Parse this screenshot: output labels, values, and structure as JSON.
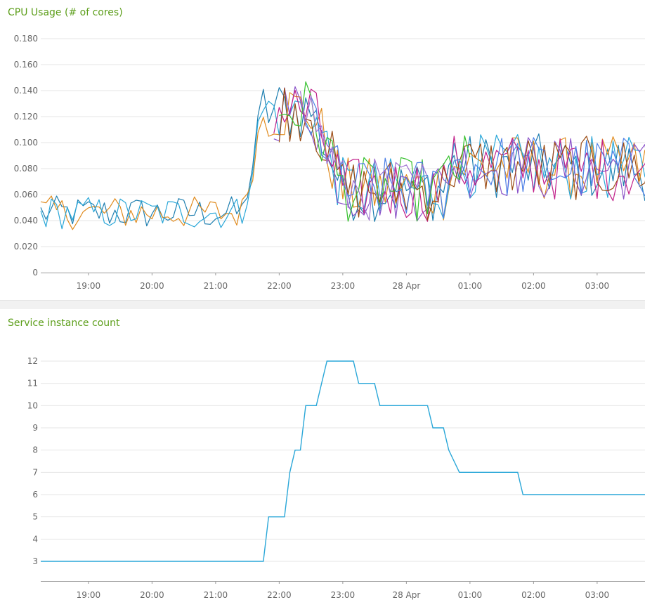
{
  "chart_data": [
    {
      "type": "line",
      "title": "CPU Usage (# of cores)",
      "ylim": [
        0,
        0.18
      ],
      "yticks": [
        "0",
        "0.020",
        "0.040",
        "0.060",
        "0.080",
        "0.100",
        "0.120",
        "0.140",
        "0.160",
        "0.180"
      ],
      "ytick_values": [
        0,
        0.02,
        0.04,
        0.06,
        0.08,
        0.1,
        0.12,
        0.14,
        0.16,
        0.18
      ],
      "xticks": [
        "19:00",
        "20:00",
        "21:00",
        "22:00",
        "23:00",
        "28 Apr",
        "01:00",
        "02:00",
        "03:00"
      ],
      "grid": true,
      "legend": "none",
      "colors": [
        "#1f7fb0",
        "#e08a1c",
        "#2aa7d8",
        "#8a52c8",
        "#c2208a",
        "#9a4a12",
        "#34c02c",
        "#4c7fe6",
        "#9d6fd0"
      ],
      "series_note": "",
      "series_count": 9
    },
    {
      "type": "line",
      "title": "Service instance count",
      "yticks": [
        "3",
        "4",
        "5",
        "6",
        "7",
        "8",
        "9",
        "10",
        "11",
        "12"
      ],
      "ytick_values": [
        3,
        4,
        5,
        6,
        7,
        8,
        9,
        10,
        11,
        12
      ],
      "ylim": [
        2.6,
        12
      ],
      "xticks": [
        "19:00",
        "20:00",
        "21:00",
        "22:00",
        "23:00",
        "28 Apr",
        "01:00",
        "02:00",
        "03:00"
      ],
      "grid": true,
      "legend": "none",
      "colors": [
        "#2aa7d8"
      ],
      "x": [
        "18:15",
        "21:45",
        "21:50",
        "22:05",
        "22:10",
        "22:15",
        "22:20",
        "22:25",
        "22:35",
        "22:40",
        "22:45",
        "22:50",
        "23:10",
        "23:15",
        "23:30",
        "23:35",
        "23:45",
        "00:20",
        "00:25",
        "00:35",
        "00:40",
        "00:50",
        "01:45",
        "01:50",
        "03:55"
      ],
      "values": [
        3,
        3,
        5,
        5,
        7,
        8,
        8,
        10,
        10,
        11,
        12,
        12,
        12,
        11,
        11,
        10,
        10,
        10,
        9,
        9,
        8,
        7,
        7,
        6,
        6
      ]
    }
  ]
}
